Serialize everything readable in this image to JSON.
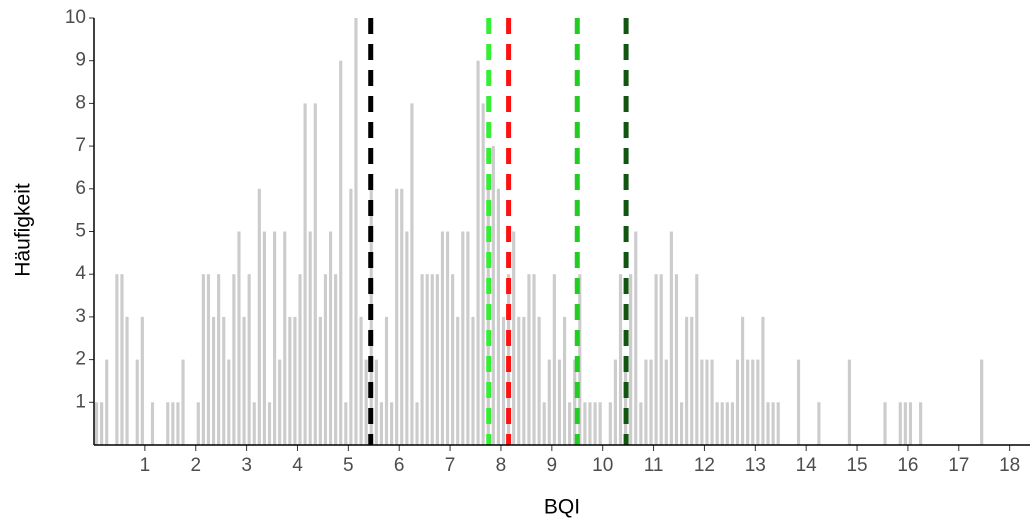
{
  "chart_data": {
    "type": "histogram",
    "x_label": "BQI",
    "y_label": "Häufigkeit",
    "bins": [
      0,
      0.1,
      0.2,
      0.3,
      0.4,
      0.5,
      0.6,
      0.7,
      0.8,
      0.9,
      1,
      1.1,
      1.2,
      1.3,
      1.4,
      1.5,
      1.6,
      1.7,
      1.8,
      1.9,
      2,
      2.1,
      2.2,
      2.3,
      2.4,
      2.5,
      2.6,
      2.7,
      2.8,
      2.9,
      3,
      3.1,
      3.2,
      3.3,
      3.4,
      3.5,
      3.6,
      3.7,
      3.8,
      3.9,
      4,
      4.1,
      4.2,
      4.3,
      4.4,
      4.5,
      4.6,
      4.7,
      4.8,
      4.9,
      5,
      5.1,
      5.2,
      5.3,
      5.4,
      5.5,
      5.6,
      5.7,
      5.8,
      5.9,
      6,
      6.1,
      6.2,
      6.3,
      6.4,
      6.5,
      6.6,
      6.7,
      6.8,
      6.9,
      7,
      7.1,
      7.2,
      7.3,
      7.4,
      7.5,
      7.6,
      7.7,
      7.8,
      7.9,
      8,
      8.1,
      8.2,
      8.3,
      8.4,
      8.5,
      8.6,
      8.7,
      8.8,
      8.9,
      9,
      9.1,
      9.2,
      9.3,
      9.4,
      9.5,
      9.6,
      9.7,
      9.8,
      9.9,
      10,
      10.1,
      10.2,
      10.3,
      10.4,
      10.5,
      10.6,
      10.7,
      10.8,
      10.9,
      11,
      11.1,
      11.2,
      11.3,
      11.4,
      11.5,
      11.6,
      11.7,
      11.8,
      11.9,
      12,
      12.1,
      12.2,
      12.3,
      12.4,
      12.5,
      12.6,
      12.7,
      12.8,
      12.9,
      13,
      13.1,
      13.2,
      13.3,
      13.4,
      13.5,
      13.6,
      13.7,
      13.8,
      13.9,
      14,
      14.1,
      14.2,
      14.3,
      14.4,
      14.5,
      14.6,
      14.7,
      14.8,
      14.9,
      15,
      15.1,
      15.2,
      15.3,
      15.4,
      15.5,
      15.6,
      15.7,
      15.8,
      15.9,
      16,
      16.1,
      16.2,
      16.3,
      16.4,
      16.5,
      16.6,
      16.7,
      16.8,
      16.9,
      17,
      17.1,
      17.2,
      17.3,
      17.4,
      17.5,
      17.6,
      17.7,
      17.8,
      17.9,
      18,
      18.1,
      18.2,
      18.3,
      18.4
    ],
    "counts": [
      1,
      1,
      2,
      0,
      4,
      4,
      3,
      0,
      2,
      3,
      0,
      1,
      0,
      0,
      1,
      1,
      1,
      2,
      0,
      0,
      1,
      4,
      4,
      3,
      4,
      3,
      2,
      4,
      5,
      3,
      4,
      1,
      6,
      5,
      1,
      5,
      2,
      5,
      3,
      3,
      4,
      8,
      5,
      8,
      3,
      4,
      5,
      4,
      9,
      1,
      6,
      10,
      3,
      2,
      6,
      2,
      1,
      3,
      1,
      6,
      6,
      5,
      8,
      1,
      4,
      4,
      4,
      4,
      5,
      5,
      4,
      3,
      5,
      5,
      3,
      9,
      8,
      6,
      7,
      6,
      3,
      4,
      5,
      3,
      3,
      4,
      4,
      3,
      1,
      2,
      4,
      2,
      3,
      1,
      2,
      4,
      1,
      1,
      1,
      1,
      0,
      1,
      2,
      4,
      2,
      4,
      5,
      1,
      2,
      2,
      4,
      4,
      2,
      5,
      4,
      1,
      3,
      3,
      4,
      2,
      2,
      2,
      1,
      1,
      1,
      1,
      2,
      3,
      2,
      2,
      2,
      3,
      1,
      1,
      1,
      0,
      0,
      0,
      2,
      0,
      0,
      0,
      1,
      0,
      0,
      0,
      0,
      0,
      2,
      0,
      0,
      0,
      0,
      0,
      0,
      1,
      0,
      0,
      1,
      1,
      1,
      0,
      1,
      0,
      0,
      0,
      0,
      0,
      0,
      0,
      0,
      0,
      0,
      0,
      2,
      0,
      0,
      0,
      0,
      0,
      0,
      0,
      0,
      0
    ],
    "color": "#cccccc",
    "vlines": [
      {
        "value": 5.44,
        "color": "#000000"
      },
      {
        "value": 7.76,
        "color": "#33ee33"
      },
      {
        "value": 8.15,
        "color": "#ff1111"
      },
      {
        "value": 9.5,
        "color": "#22cc22"
      },
      {
        "value": 10.46,
        "color": "#115511"
      }
    ],
    "xlim": [
      0,
      18.4
    ],
    "ylim": [
      0,
      10
    ],
    "xticks": [
      1,
      2,
      3,
      4,
      5,
      6,
      7,
      8,
      9,
      10,
      11,
      12,
      13,
      14,
      15,
      16,
      17,
      18
    ],
    "yticks": [
      1,
      2,
      3,
      4,
      5,
      6,
      7,
      8,
      9,
      10
    ]
  }
}
